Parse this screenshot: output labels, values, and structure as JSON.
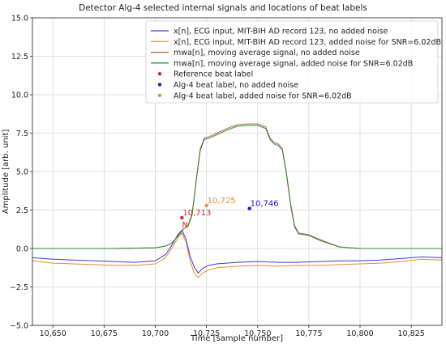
{
  "chart_data": {
    "type": "line",
    "title": "Detector Alg-4 selected internal signals and locations of beat labels",
    "xlabel": "Time [sample number]",
    "ylabel": "Amplitude [arb. unit]",
    "xlim": [
      10640,
      10840
    ],
    "ylim": [
      -5.0,
      15.0
    ],
    "x_ticks": [
      10650,
      10675,
      10700,
      10725,
      10750,
      10775,
      10800,
      10825
    ],
    "x_tick_labels": [
      "10,650",
      "10,675",
      "10,700",
      "10,725",
      "10,750",
      "10,775",
      "10,800",
      "10,825"
    ],
    "y_ticks": [
      -5.0,
      -2.5,
      0.0,
      2.5,
      5.0,
      7.5,
      10.0,
      12.5,
      15.0
    ],
    "y_tick_labels": [
      "−5.0",
      "−2.5",
      "0.0",
      "2.5",
      "5.0",
      "7.5",
      "10.0",
      "12.5",
      "15.0"
    ],
    "grid": true,
    "legend_position": "top-right",
    "series": [
      {
        "name": "x[n], ECG input, MIT-BIH AD record 123, no added noise",
        "color": "#3b3bd6",
        "kind": "line",
        "x": [
          10640,
          10650,
          10660,
          10670,
          10680,
          10690,
          10700,
          10705,
          10708,
          10711,
          10713,
          10715,
          10717,
          10719,
          10721,
          10723,
          10726,
          10730,
          10740,
          10750,
          10760,
          10770,
          10780,
          10790,
          10800,
          10810,
          10820,
          10830,
          10840
        ],
        "y": [
          -0.6,
          -0.7,
          -0.75,
          -0.8,
          -0.85,
          -0.9,
          -0.8,
          -0.4,
          0.2,
          0.9,
          1.2,
          0.6,
          -0.5,
          -1.2,
          -1.6,
          -1.3,
          -1.1,
          -1.0,
          -0.9,
          -0.85,
          -0.9,
          -0.9,
          -0.85,
          -0.8,
          -0.8,
          -0.75,
          -0.65,
          -0.55,
          -0.6
        ]
      },
      {
        "name": "x[n], ECG input, MIT-BIH AD record 123, added noise for SNR=6.02dB",
        "color": "#f08a30",
        "kind": "line",
        "x": [
          10640,
          10650,
          10660,
          10670,
          10680,
          10690,
          10700,
          10705,
          10708,
          10711,
          10713,
          10715,
          10717,
          10719,
          10721,
          10723,
          10726,
          10730,
          10740,
          10750,
          10760,
          10770,
          10780,
          10790,
          10800,
          10810,
          10820,
          10830,
          10840
        ],
        "y": [
          -0.8,
          -0.95,
          -1.0,
          -1.05,
          -1.1,
          -1.1,
          -1.0,
          -0.6,
          0.0,
          0.7,
          1.0,
          0.4,
          -0.8,
          -1.6,
          -1.9,
          -1.6,
          -1.4,
          -1.25,
          -1.15,
          -1.1,
          -1.15,
          -1.1,
          -1.1,
          -1.05,
          -1.0,
          -0.95,
          -0.85,
          -0.7,
          -0.75
        ]
      },
      {
        "name": "mwa[n], moving average signal, no added noise",
        "color": "#c25b5b",
        "kind": "line",
        "x": [
          10640,
          10680,
          10700,
          10705,
          10708,
          10711,
          10714,
          10716,
          10718,
          10720,
          10722,
          10724,
          10726,
          10730,
          10735,
          10740,
          10745,
          10750,
          10754,
          10756,
          10758,
          10760,
          10762,
          10764,
          10766,
          10768,
          10770,
          10775,
          10780,
          10790,
          10800,
          10840
        ],
        "y": [
          0.0,
          0.0,
          0.05,
          0.15,
          0.35,
          0.8,
          1.3,
          1.5,
          2.3,
          4.5,
          6.5,
          7.2,
          7.25,
          7.5,
          7.8,
          8.05,
          8.1,
          8.1,
          7.9,
          7.2,
          6.9,
          6.8,
          6.5,
          5.0,
          3.0,
          1.5,
          1.0,
          0.9,
          0.6,
          0.1,
          0.0,
          0.0
        ]
      },
      {
        "name": "mwa[n], moving average signal, added noise for SNR=6.02dB",
        "color": "#2e8b2e",
        "kind": "line",
        "x": [
          10640,
          10680,
          10700,
          10705,
          10708,
          10711,
          10714,
          10716,
          10718,
          10720,
          10722,
          10724,
          10726,
          10730,
          10735,
          10740,
          10745,
          10750,
          10754,
          10756,
          10758,
          10760,
          10762,
          10764,
          10766,
          10768,
          10770,
          10775,
          10780,
          10790,
          10800,
          10840
        ],
        "y": [
          0.0,
          0.0,
          0.05,
          0.15,
          0.35,
          0.8,
          1.3,
          1.45,
          2.2,
          4.4,
          6.4,
          7.1,
          7.15,
          7.4,
          7.7,
          7.95,
          8.0,
          8.0,
          7.8,
          7.1,
          6.8,
          6.7,
          6.4,
          4.9,
          2.9,
          1.4,
          0.95,
          0.85,
          0.55,
          0.1,
          0.0,
          0.0
        ]
      },
      {
        "name": "Reference beat label",
        "color": "#e02020",
        "kind": "point",
        "x": [
          10713
        ],
        "y": [
          2.0
        ],
        "point_label": "10,713",
        "note": "N"
      },
      {
        "name": "Alg-4 beat label, no added noise",
        "color": "#1a1ac8",
        "kind": "point",
        "x": [
          10746
        ],
        "y": [
          2.6
        ],
        "point_label": "10,746"
      },
      {
        "name": "Alg-4 beat label, added noise for SNR=6.02dB",
        "color": "#f08a30",
        "kind": "point",
        "x": [
          10725
        ],
        "y": [
          2.8
        ],
        "point_label": "10,725"
      }
    ]
  }
}
